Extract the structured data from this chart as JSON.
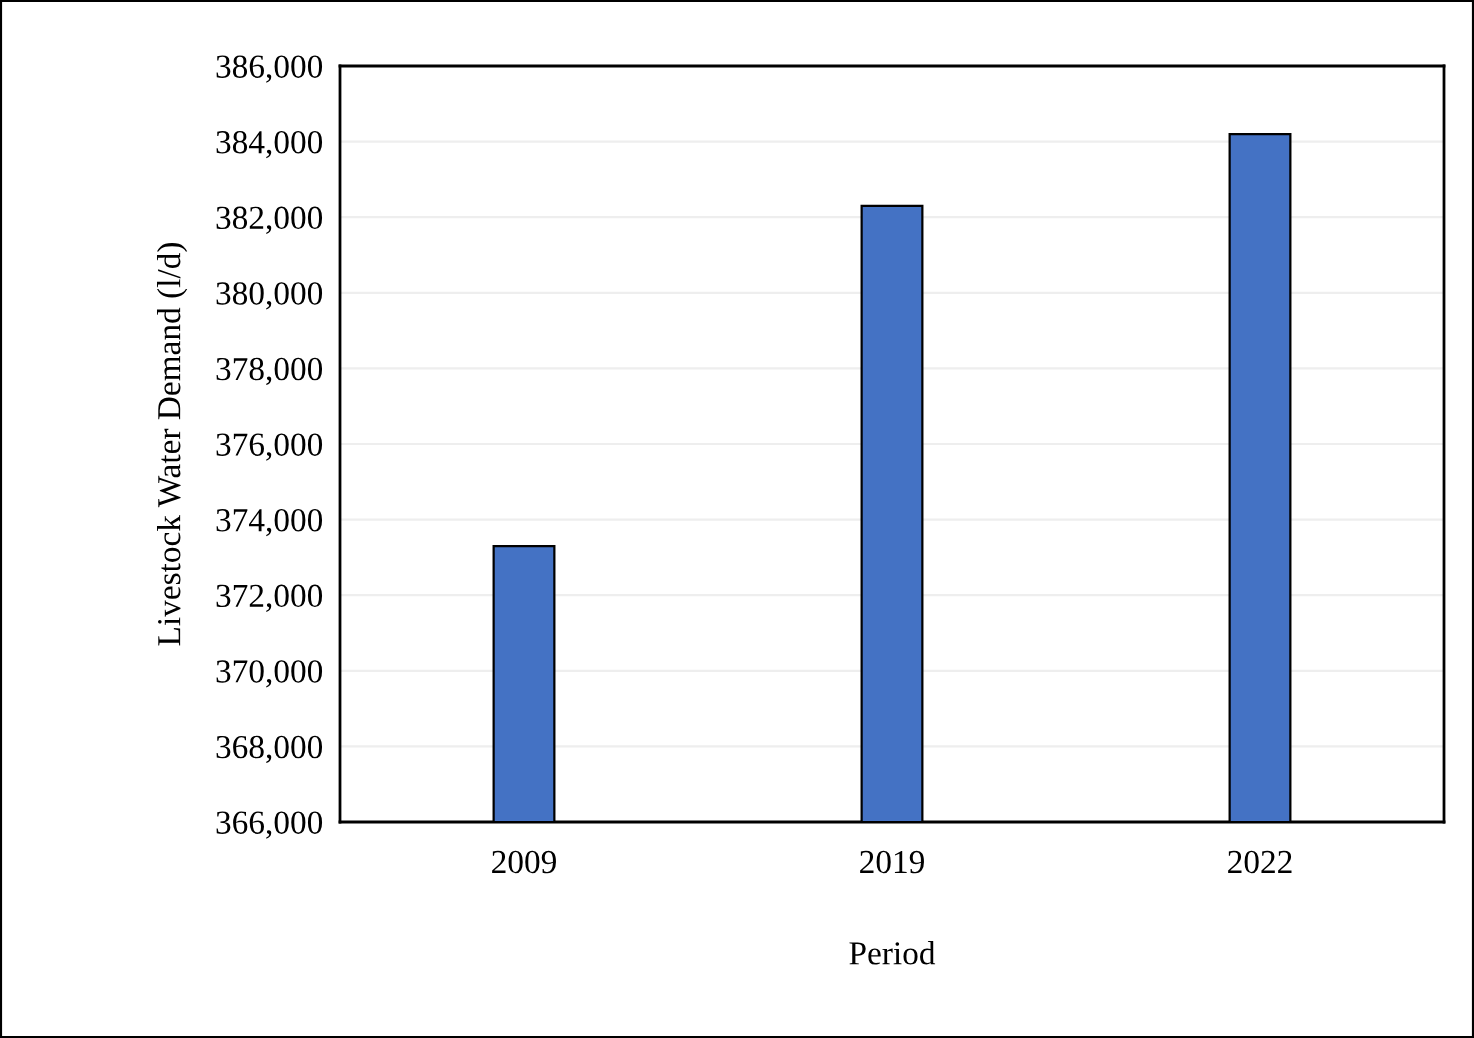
{
  "chart_data": {
    "type": "bar",
    "xlabel": "Period",
    "ylabel": "Livestock Water Demand (l/d)",
    "categories": [
      "2009",
      "2019",
      "2022"
    ],
    "values": [
      373300,
      382300,
      384200
    ],
    "color": "#4472c4",
    "ylim": [
      366000,
      386000
    ],
    "yticks": [
      {
        "value": 366000,
        "label": "366,000"
      },
      {
        "value": 368000,
        "label": "368,000"
      },
      {
        "value": 370000,
        "label": "370,000"
      },
      {
        "value": 372000,
        "label": "372,000"
      },
      {
        "value": 374000,
        "label": "374,000"
      },
      {
        "value": 376000,
        "label": "376,000"
      },
      {
        "value": 378000,
        "label": "378,000"
      },
      {
        "value": 380000,
        "label": "380,000"
      },
      {
        "value": 382000,
        "label": "382,000"
      },
      {
        "value": 384000,
        "label": "384,000"
      },
      {
        "value": 386000,
        "label": "386,000"
      }
    ],
    "grid": "y"
  }
}
